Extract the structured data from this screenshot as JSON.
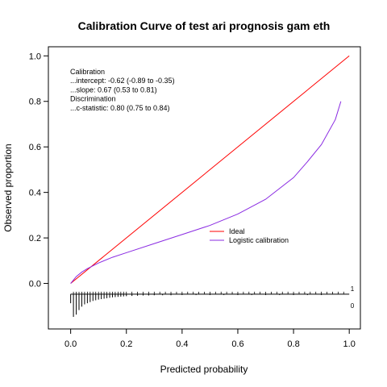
{
  "chart_data": {
    "type": "line",
    "title": "Calibration Curve of test ari prognosis gam eth",
    "xlabel": "Predicted probability",
    "ylabel": "Observed proportion",
    "xlim": [
      -0.08,
      1.04
    ],
    "ylim": [
      -0.2,
      1.04
    ],
    "x_ticks": [
      "0.0",
      "0.2",
      "0.4",
      "0.6",
      "0.8",
      "1.0"
    ],
    "y_ticks": [
      "0.0",
      "0.2",
      "0.4",
      "0.6",
      "0.8",
      "1.0"
    ],
    "annotation_lines": [
      "Calibration",
      "...intercept: -0.62 (-0.89 to -0.35)",
      "...slope: 0.67 (0.53 to 0.81)",
      "Discrimination",
      "...c-statistic: 0.80 (0.75 to 0.84)"
    ],
    "legend_position": "center-right",
    "series": [
      {
        "name": "Ideal",
        "color": "#ff0000",
        "x": [
          0.0,
          1.0
        ],
        "y": [
          0.0,
          1.0
        ]
      },
      {
        "name": "Logistic calibration",
        "color": "#8a2be2",
        "x": [
          0.0,
          0.01,
          0.02,
          0.04,
          0.06,
          0.1,
          0.15,
          0.2,
          0.3,
          0.4,
          0.5,
          0.6,
          0.7,
          0.8,
          0.85,
          0.9,
          0.95,
          0.97
        ],
        "y": [
          0.0,
          0.015,
          0.03,
          0.05,
          0.065,
          0.09,
          0.115,
          0.135,
          0.175,
          0.215,
          0.255,
          0.305,
          0.37,
          0.465,
          0.535,
          0.61,
          0.72,
          0.8
        ]
      }
    ],
    "rug": {
      "baseline": -0.047,
      "labels": [
        "1",
        "0"
      ],
      "events_top_x": [
        0.01,
        0.02,
        0.03,
        0.04,
        0.05,
        0.06,
        0.07,
        0.08,
        0.09,
        0.1,
        0.11,
        0.12,
        0.13,
        0.14,
        0.15,
        0.16,
        0.17,
        0.18,
        0.19,
        0.2,
        0.22,
        0.24,
        0.26,
        0.28,
        0.3,
        0.32,
        0.34,
        0.36,
        0.38,
        0.4,
        0.42,
        0.44,
        0.46,
        0.48,
        0.5,
        0.52,
        0.54,
        0.56,
        0.58,
        0.6,
        0.62,
        0.64,
        0.66,
        0.68,
        0.7,
        0.72,
        0.74,
        0.76,
        0.78,
        0.8,
        0.82,
        0.84,
        0.86,
        0.88,
        0.9,
        0.92,
        0.94,
        0.96,
        0.98
      ],
      "nonevents_bottom": [
        {
          "x": 0.0,
          "h": 0.04
        },
        {
          "x": 0.01,
          "h": 0.1
        },
        {
          "x": 0.02,
          "h": 0.09
        },
        {
          "x": 0.03,
          "h": 0.07
        },
        {
          "x": 0.04,
          "h": 0.055
        },
        {
          "x": 0.05,
          "h": 0.045
        },
        {
          "x": 0.06,
          "h": 0.04
        },
        {
          "x": 0.07,
          "h": 0.035
        },
        {
          "x": 0.08,
          "h": 0.03
        },
        {
          "x": 0.09,
          "h": 0.027
        },
        {
          "x": 0.1,
          "h": 0.024
        },
        {
          "x": 0.11,
          "h": 0.022
        },
        {
          "x": 0.12,
          "h": 0.02
        },
        {
          "x": 0.13,
          "h": 0.018
        },
        {
          "x": 0.14,
          "h": 0.016
        },
        {
          "x": 0.15,
          "h": 0.014
        },
        {
          "x": 0.16,
          "h": 0.013
        },
        {
          "x": 0.17,
          "h": 0.012
        },
        {
          "x": 0.18,
          "h": 0.011
        },
        {
          "x": 0.19,
          "h": 0.01
        },
        {
          "x": 0.2,
          "h": 0.009
        },
        {
          "x": 0.22,
          "h": 0.008
        },
        {
          "x": 0.24,
          "h": 0.007
        },
        {
          "x": 0.26,
          "h": 0.006
        },
        {
          "x": 0.28,
          "h": 0.006
        },
        {
          "x": 0.3,
          "h": 0.005
        },
        {
          "x": 0.33,
          "h": 0.005
        },
        {
          "x": 0.36,
          "h": 0.005
        },
        {
          "x": 0.4,
          "h": 0.004
        },
        {
          "x": 0.45,
          "h": 0.004
        },
        {
          "x": 0.5,
          "h": 0.004
        },
        {
          "x": 0.55,
          "h": 0.004
        },
        {
          "x": 0.6,
          "h": 0.004
        },
        {
          "x": 0.65,
          "h": 0.004
        },
        {
          "x": 0.7,
          "h": 0.004
        },
        {
          "x": 0.75,
          "h": 0.004
        },
        {
          "x": 0.8,
          "h": 0.004
        },
        {
          "x": 0.85,
          "h": 0.004
        },
        {
          "x": 0.9,
          "h": 0.004
        }
      ]
    }
  }
}
